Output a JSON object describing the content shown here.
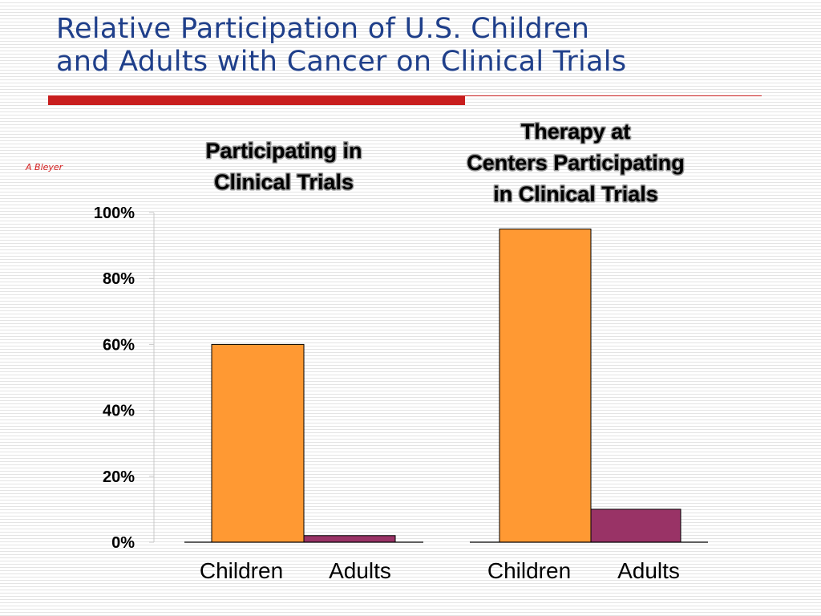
{
  "slide": {
    "title_lines": [
      "Relative Participation of U.S. Children",
      "and Adults with Cancer on Clinical Trials"
    ],
    "credit": "A Bleyer"
  },
  "colors": {
    "children": "#ff9933",
    "adults": "#993366",
    "title": "#1f3f8a",
    "rule": "#c81e1e"
  },
  "chart_data": {
    "type": "bar",
    "ylim": [
      0,
      100
    ],
    "y_ticks": [
      0,
      20,
      40,
      60,
      80,
      100
    ],
    "y_tick_labels": [
      "0%",
      "20%",
      "40%",
      "60%",
      "80%",
      "100%"
    ],
    "grid": false,
    "series_names": [
      "Children",
      "Adults"
    ],
    "panels": [
      {
        "title_lines": [
          "Participating in",
          "Clinical Trials"
        ],
        "categories": [
          "Children",
          "Adults"
        ],
        "values": [
          60,
          2
        ]
      },
      {
        "title_lines": [
          "Therapy at",
          "Centers Participating",
          "in Clinical Trials"
        ],
        "categories": [
          "Children",
          "Adults"
        ],
        "values": [
          95,
          10
        ]
      }
    ]
  }
}
